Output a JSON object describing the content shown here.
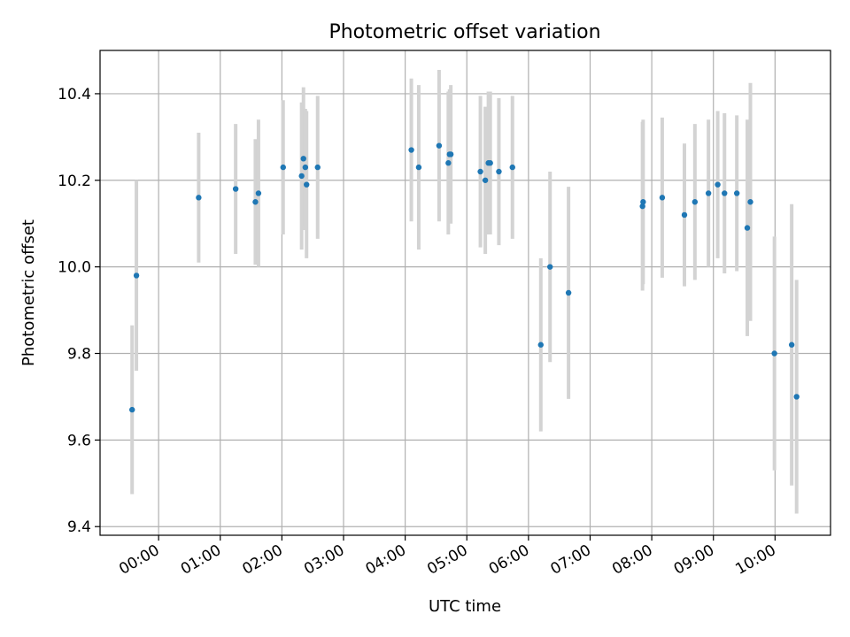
{
  "chart_data": {
    "type": "scatter",
    "title": "Photometric offset variation",
    "xlabel": "UTC time",
    "ylabel": "Photometric offset",
    "x_unit": "hours UTC",
    "xlim": [
      -0.95,
      10.9
    ],
    "ylim": [
      9.38,
      10.5
    ],
    "x_ticks": [
      0,
      1,
      2,
      3,
      4,
      5,
      6,
      7,
      8,
      9,
      10
    ],
    "x_tick_labels": [
      "00:00",
      "01:00",
      "02:00",
      "03:00",
      "04:00",
      "05:00",
      "06:00",
      "07:00",
      "08:00",
      "09:00",
      "10:00"
    ],
    "y_ticks": [
      9.4,
      9.6,
      9.8,
      10.0,
      10.2,
      10.4
    ],
    "y_tick_labels": [
      "9.4",
      "9.6",
      "9.8",
      "10.0",
      "10.2",
      "10.4"
    ],
    "grid": true,
    "legend": "none",
    "colors": {
      "point": "#1f77b4",
      "errorbar": "#d3d3d3",
      "grid": "#b0b0b0"
    },
    "points": [
      {
        "x": -0.43,
        "y": 9.67,
        "err": 0.195
      },
      {
        "x": -0.36,
        "y": 9.98,
        "err": 0.22
      },
      {
        "x": 0.65,
        "y": 10.16,
        "err": 0.15
      },
      {
        "x": 1.25,
        "y": 10.18,
        "err": 0.15
      },
      {
        "x": 1.57,
        "y": 10.15,
        "err": 0.145
      },
      {
        "x": 1.62,
        "y": 10.17,
        "err": 0.17
      },
      {
        "x": 2.02,
        "y": 10.23,
        "err": 0.155
      },
      {
        "x": 2.32,
        "y": 10.21,
        "err": 0.17
      },
      {
        "x": 2.35,
        "y": 10.25,
        "err": 0.165
      },
      {
        "x": 2.38,
        "y": 10.23,
        "err": 0.135
      },
      {
        "x": 2.4,
        "y": 10.19,
        "err": 0.17
      },
      {
        "x": 2.58,
        "y": 10.23,
        "err": 0.165
      },
      {
        "x": 4.1,
        "y": 10.27,
        "err": 0.165
      },
      {
        "x": 4.22,
        "y": 10.23,
        "err": 0.19
      },
      {
        "x": 4.55,
        "y": 10.28,
        "err": 0.175
      },
      {
        "x": 4.7,
        "y": 10.24,
        "err": 0.165
      },
      {
        "x": 4.72,
        "y": 10.26,
        "err": 0.15
      },
      {
        "x": 4.74,
        "y": 10.26,
        "err": 0.16
      },
      {
        "x": 5.22,
        "y": 10.22,
        "err": 0.175
      },
      {
        "x": 5.3,
        "y": 10.2,
        "err": 0.17
      },
      {
        "x": 5.35,
        "y": 10.24,
        "err": 0.165
      },
      {
        "x": 5.38,
        "y": 10.24,
        "err": 0.165
      },
      {
        "x": 5.52,
        "y": 10.22,
        "err": 0.17
      },
      {
        "x": 5.74,
        "y": 10.23,
        "err": 0.165
      },
      {
        "x": 6.2,
        "y": 9.82,
        "err": 0.2
      },
      {
        "x": 6.35,
        "y": 10.0,
        "err": 0.22
      },
      {
        "x": 6.65,
        "y": 9.94,
        "err": 0.245
      },
      {
        "x": 7.85,
        "y": 10.14,
        "err": 0.195
      },
      {
        "x": 7.86,
        "y": 10.15,
        "err": 0.19
      },
      {
        "x": 8.17,
        "y": 10.16,
        "err": 0.185
      },
      {
        "x": 8.53,
        "y": 10.12,
        "err": 0.165
      },
      {
        "x": 8.7,
        "y": 10.15,
        "err": 0.18
      },
      {
        "x": 8.92,
        "y": 10.17,
        "err": 0.17
      },
      {
        "x": 9.07,
        "y": 10.19,
        "err": 0.17
      },
      {
        "x": 9.18,
        "y": 10.17,
        "err": 0.185
      },
      {
        "x": 9.38,
        "y": 10.17,
        "err": 0.18
      },
      {
        "x": 9.55,
        "y": 10.09,
        "err": 0.25
      },
      {
        "x": 9.6,
        "y": 10.15,
        "err": 0.275
      },
      {
        "x": 9.99,
        "y": 9.8,
        "err": 0.27
      },
      {
        "x": 10.27,
        "y": 9.82,
        "err": 0.325
      },
      {
        "x": 10.35,
        "y": 9.7,
        "err": 0.27
      }
    ]
  }
}
